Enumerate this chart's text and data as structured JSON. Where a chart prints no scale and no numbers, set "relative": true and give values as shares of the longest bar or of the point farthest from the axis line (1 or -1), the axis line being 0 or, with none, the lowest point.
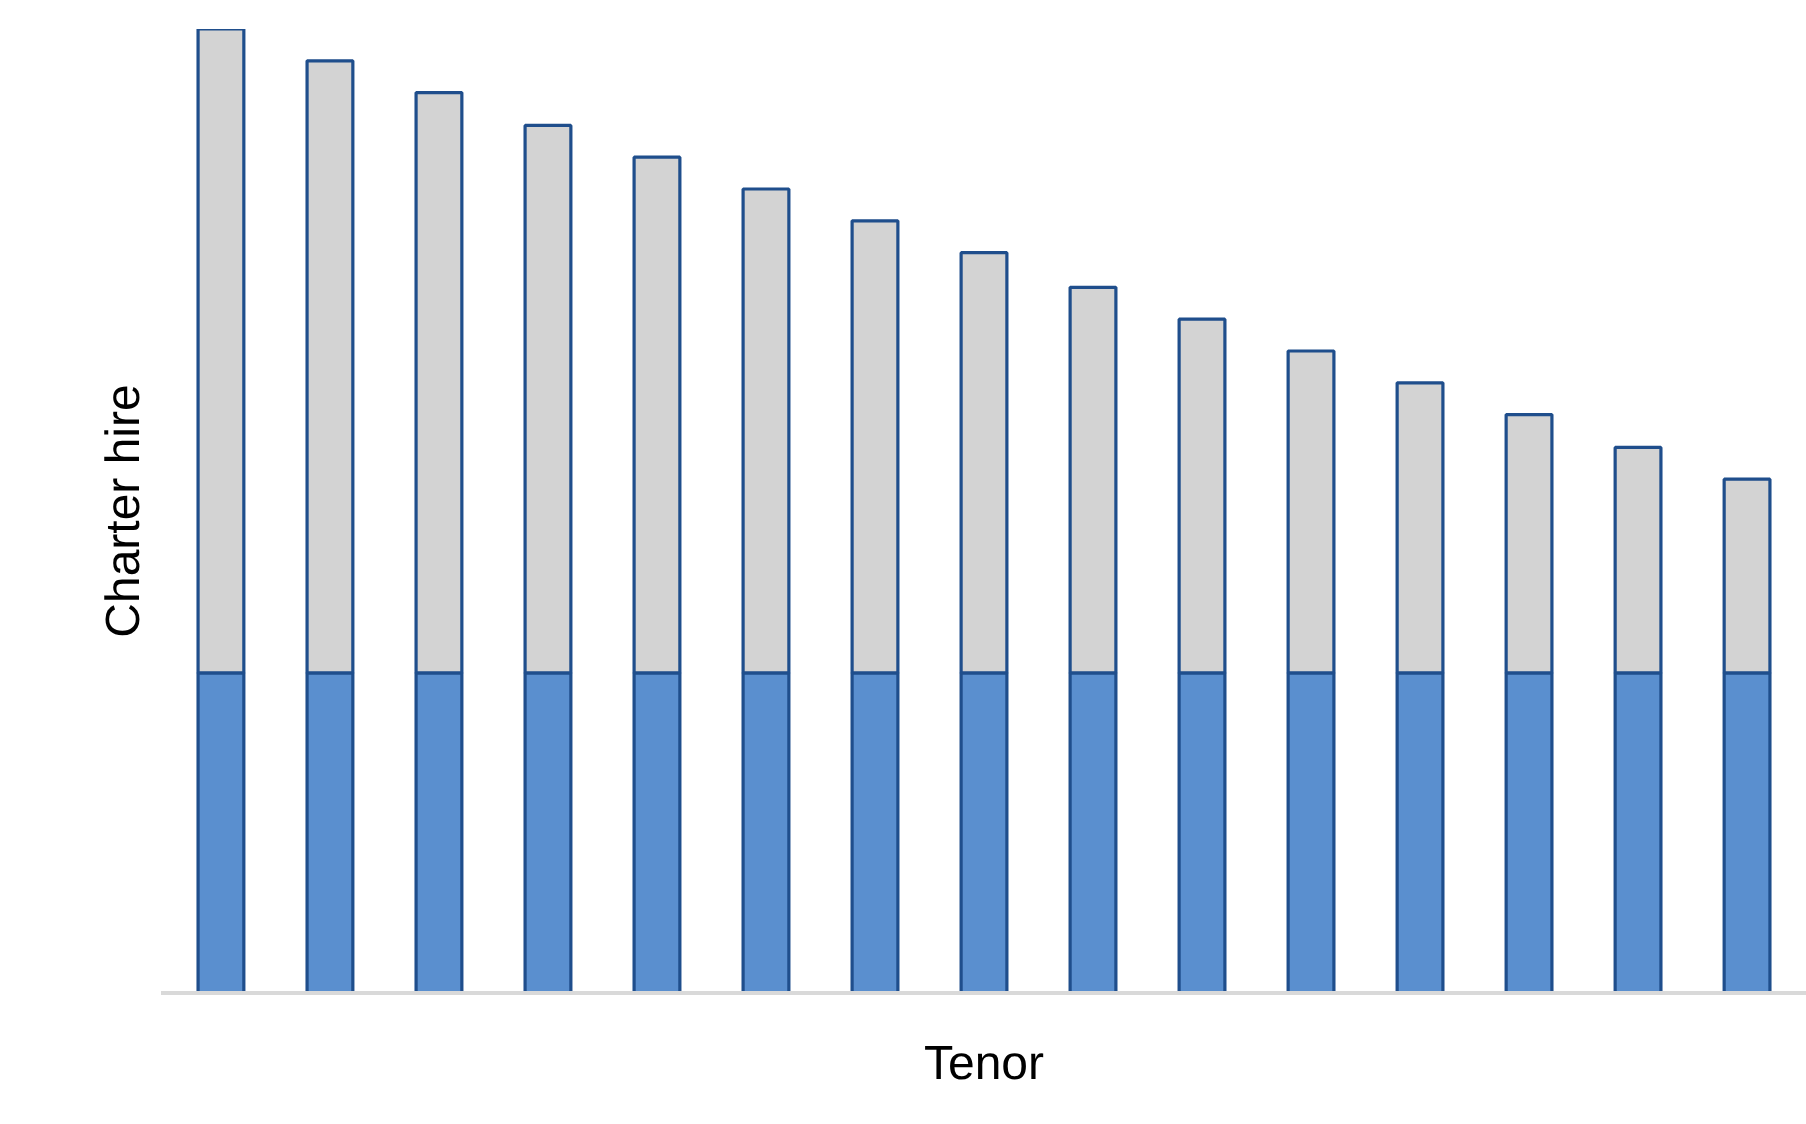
{
  "chart_data": {
    "type": "bar",
    "stacked": true,
    "relative": true,
    "xlabel": "Tenor",
    "ylabel": "Charter hire",
    "categories": [
      null,
      null,
      null,
      null,
      null,
      null,
      null,
      null,
      null,
      null,
      null,
      null,
      null,
      null,
      null
    ],
    "series": [
      {
        "color": "#5a8fcf",
        "values": [
          0.332,
          0.332,
          0.332,
          0.332,
          0.332,
          0.332,
          0.332,
          0.332,
          0.332,
          0.332,
          0.332,
          0.332,
          0.332,
          0.332,
          0.332
        ]
      },
      {
        "color": "#d3d3d3",
        "values": [
          0.668,
          0.635,
          0.602,
          0.568,
          0.535,
          0.502,
          0.469,
          0.436,
          0.4,
          0.367,
          0.334,
          0.301,
          0.268,
          0.234,
          0.201
        ]
      }
    ]
  }
}
